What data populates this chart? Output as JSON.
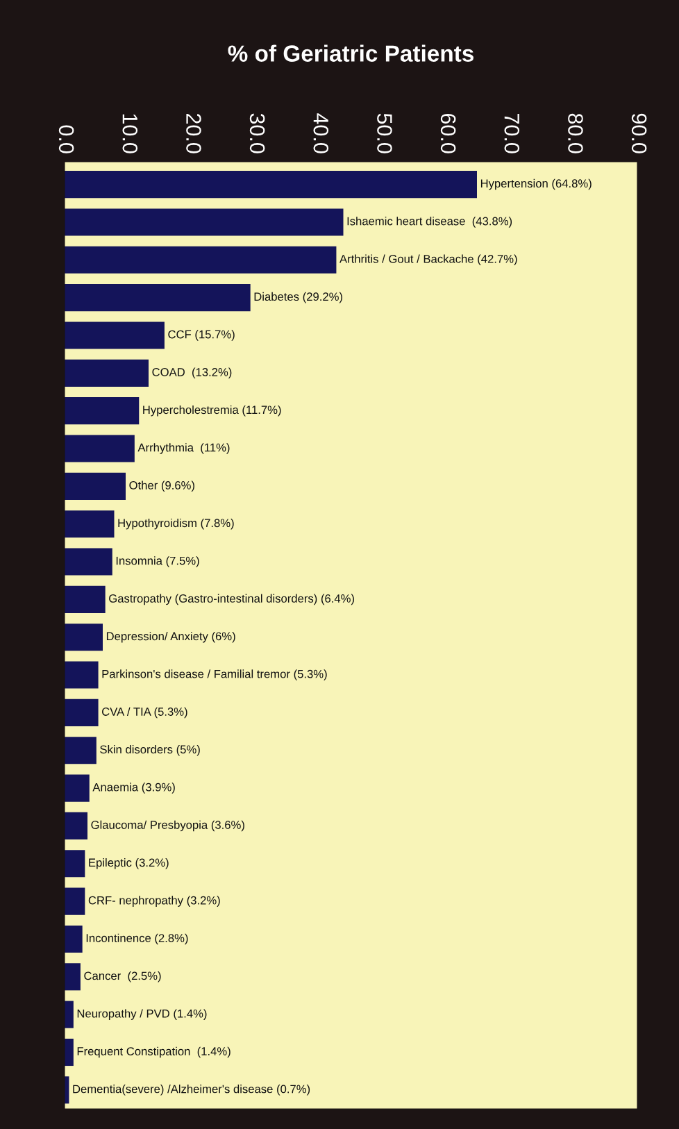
{
  "chart_data": {
    "type": "bar",
    "orientation": "horizontal",
    "title": "% of Geriatric Patients",
    "categories": [
      "Hypertension (64.8%)",
      "Ishaemic heart disease  (43.8%)",
      "Arthritis / Gout / Backache (42.7%)",
      "Diabetes (29.2%)",
      "CCF (15.7%)",
      "COAD  (13.2%)",
      "Hypercholestremia (11.7%)",
      "Arrhythmia  (11%)",
      "Other (9.6%)",
      "Hypothyroidism (7.8%)",
      "Insomnia (7.5%)",
      "Gastropathy (Gastro-intestinal disorders) (6.4%)",
      "Depression/ Anxiety (6%)",
      "Parkinson's disease / Familial tremor (5.3%)",
      "CVA / TIA (5.3%)",
      "Skin disorders (5%)",
      "Anaemia (3.9%)",
      "Glaucoma/ Presbyopia (3.6%)",
      "Epileptic (3.2%)",
      "CRF- nephropathy (3.2%)",
      "Incontinence (2.8%)",
      "Cancer  (2.5%)",
      "Neuropathy / PVD (1.4%)",
      "Frequent Constipation  (1.4%)",
      "Dementia(severe) /Alzheimer's disease (0.7%)"
    ],
    "values": [
      64.8,
      43.8,
      42.7,
      29.2,
      15.7,
      13.2,
      11.7,
      11,
      9.6,
      7.8,
      7.5,
      6.4,
      6,
      5.3,
      5.3,
      5,
      3.9,
      3.6,
      3.2,
      3.2,
      2.8,
      2.5,
      1.4,
      1.4,
      0.7
    ],
    "color": "#14145a",
    "xlim": [
      0,
      90
    ],
    "xticks": [
      {
        "value": 0,
        "label": "0.0"
      },
      {
        "value": 10,
        "label": "10.0"
      },
      {
        "value": 20,
        "label": "20.0"
      },
      {
        "value": 30,
        "label": "30.0"
      },
      {
        "value": 40,
        "label": "40.0"
      },
      {
        "value": 50,
        "label": "50.0"
      },
      {
        "value": 60,
        "label": "60.0"
      },
      {
        "value": 70,
        "label": "70.0"
      },
      {
        "value": 80,
        "label": "80.0"
      },
      {
        "value": 90,
        "label": "90.0"
      }
    ],
    "grid": false
  }
}
